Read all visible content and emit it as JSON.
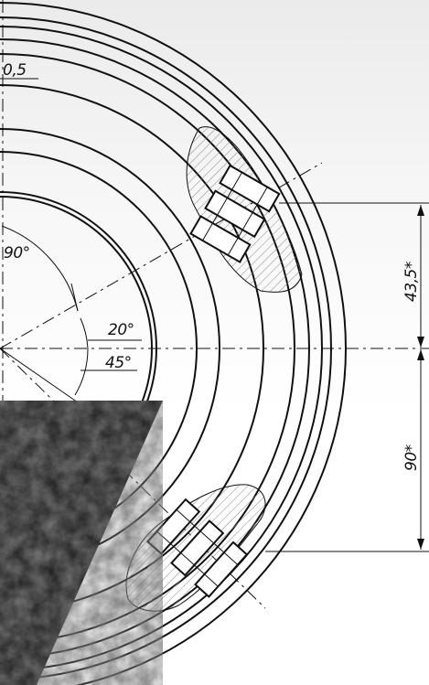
{
  "drawing": {
    "dims": {
      "top_left": "0,5",
      "angle_90": "90°",
      "angle_20": "20°",
      "angle_45": "45°",
      "dim_43_5": "43,5*",
      "dim_90": "90*"
    }
  }
}
